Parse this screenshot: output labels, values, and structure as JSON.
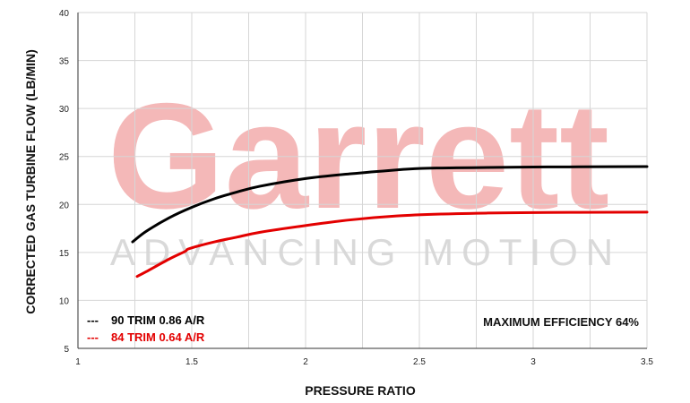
{
  "watermark": {
    "brand": "Garrett",
    "tagline": "ADVANCING MOTION",
    "brand_color": "#f4b8b8",
    "tagline_color": "#d9d9d9"
  },
  "chart_data": {
    "type": "line",
    "xlabel": "PRESSURE RATIO",
    "ylabel": "CORRECTED GAS TURBINE FLOW (LB/MIN)",
    "xlim": [
      1,
      3.5
    ],
    "ylim": [
      5,
      40
    ],
    "xticks": [
      1,
      1.5,
      2,
      2.5,
      3,
      3.5
    ],
    "xtick_labels": [
      "1",
      "1.5",
      "2",
      "2.5",
      "3",
      "3.5"
    ],
    "yticks": [
      5,
      10,
      15,
      20,
      25,
      30,
      35,
      40
    ],
    "ytick_labels": [
      "5",
      "10",
      "15",
      "20",
      "25",
      "30",
      "35",
      "40"
    ],
    "grid": true,
    "legend_position": "bottom-left",
    "annotation": "MAXIMUM EFFICIENCY 64%",
    "series": [
      {
        "name": "90 TRIM 0.86 A/R",
        "color": "#000000",
        "legend_marker": "---",
        "x": [
          1.24,
          1.3,
          1.4,
          1.5,
          1.6,
          1.7,
          1.8,
          2.0,
          2.2,
          2.4,
          2.5,
          2.6,
          2.8,
          3.0,
          3.2,
          3.5
        ],
        "y": [
          16.1,
          17.2,
          18.6,
          19.7,
          20.6,
          21.3,
          21.9,
          22.7,
          23.2,
          23.6,
          23.75,
          23.8,
          23.85,
          23.9,
          23.92,
          23.95
        ]
      },
      {
        "name": "84 TRIM 0.64 A/R",
        "color": "#e30000",
        "legend_marker": "---",
        "x": [
          1.26,
          1.3,
          1.4,
          1.47,
          1.49,
          1.6,
          1.7,
          1.8,
          2.0,
          2.2,
          2.4,
          2.6,
          2.8,
          3.0,
          3.2,
          3.5
        ],
        "y": [
          12.5,
          13.0,
          14.3,
          15.1,
          15.4,
          16.1,
          16.6,
          17.1,
          17.8,
          18.4,
          18.8,
          19.0,
          19.1,
          19.15,
          19.18,
          19.2
        ]
      }
    ]
  }
}
